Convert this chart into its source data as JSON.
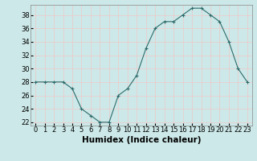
{
  "x": [
    0,
    1,
    2,
    3,
    4,
    5,
    6,
    7,
    8,
    9,
    10,
    11,
    12,
    13,
    14,
    15,
    16,
    17,
    18,
    19,
    20,
    21,
    22,
    23
  ],
  "y": [
    28,
    28,
    28,
    28,
    27,
    24,
    23,
    22,
    22,
    26,
    27,
    29,
    33,
    36,
    37,
    37,
    38,
    39,
    39,
    38,
    37,
    34,
    30,
    28
  ],
  "line_color": "#2e6b6b",
  "marker": "+",
  "marker_size": 3,
  "xlabel": "Humidex (Indice chaleur)",
  "xlim": [
    -0.5,
    23.5
  ],
  "ylim": [
    21.5,
    39.5
  ],
  "yticks": [
    22,
    24,
    26,
    28,
    30,
    32,
    34,
    36,
    38
  ],
  "xticks": [
    0,
    1,
    2,
    3,
    4,
    5,
    6,
    7,
    8,
    9,
    10,
    11,
    12,
    13,
    14,
    15,
    16,
    17,
    18,
    19,
    20,
    21,
    22,
    23
  ],
  "bg_color": "#cce8e8",
  "grid_color": "#f0c8c8",
  "tick_fontsize": 6,
  "xlabel_fontsize": 7.5
}
